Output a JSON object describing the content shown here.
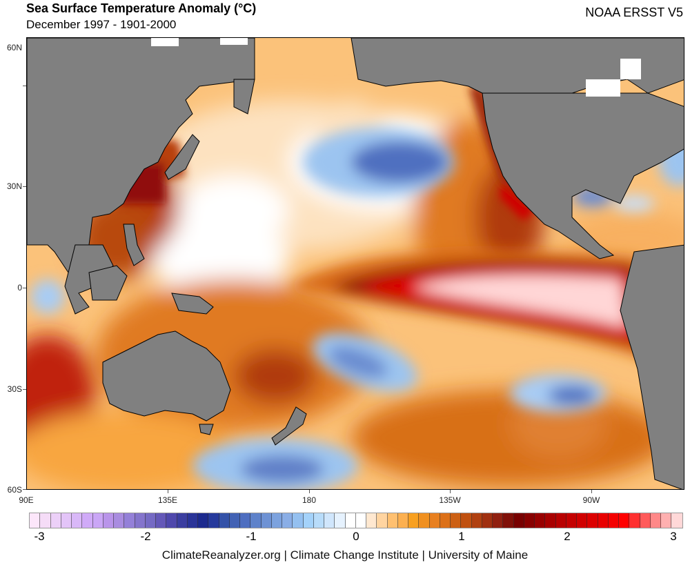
{
  "header": {
    "title": "Sea Surface Temperature Anomaly (°C)",
    "subtitle": "December 1997 - 1901-2000",
    "source": "NOAA ERSST V5"
  },
  "map": {
    "lat_labels": [
      "60N",
      "30N",
      "0",
      "30S",
      "60S"
    ],
    "lon_labels": [
      "90E",
      "135E",
      "180",
      "135W",
      "90W"
    ],
    "land_color": "#808080",
    "coastline_color": "#000000"
  },
  "colorbar": {
    "min": -3,
    "max": 3,
    "tick_labels": [
      "-3",
      "-2",
      "-1",
      "0",
      "1",
      "2",
      "3"
    ],
    "colors": [
      "#fce6fa",
      "#f5dcf7",
      "#ecd0f8",
      "#e3c4f8",
      "#d9b8f8",
      "#d0aaf8",
      "#caa6f6",
      "#b994ea",
      "#a98ce0",
      "#9480d8",
      "#8474cc",
      "#756ac4",
      "#6458b8",
      "#4f48ac",
      "#3b3ea0",
      "#2a3498",
      "#1c2a8e",
      "#263a9c",
      "#3452a8",
      "#4262b4",
      "#4e6ec0",
      "#5e82ca",
      "#6e92d4",
      "#7ca2de",
      "#8aaee6",
      "#94c0f0",
      "#a4d2fa",
      "#b8dcfa",
      "#d0e6fc",
      "#e6f2fe",
      "#ffffff",
      "#ffffff",
      "#ffe8d0",
      "#ffd4a0",
      "#ffc070",
      "#fcb050",
      "#f8a020",
      "#f09020",
      "#e88020",
      "#dc7018",
      "#cc6014",
      "#c05010",
      "#b04010",
      "#a03010",
      "#902010",
      "#801008",
      "#780000",
      "#880000",
      "#980000",
      "#a80000",
      "#b80000",
      "#c40000",
      "#d00000",
      "#dc0000",
      "#e80000",
      "#f40000",
      "#ff0000",
      "#ff3030",
      "#ff5a5a",
      "#ff8888",
      "#ffb0b0",
      "#ffd8d8"
    ]
  },
  "footer": {
    "credit": "ClimateReanalyzer.org | Climate Change Institute | University of Maine"
  }
}
